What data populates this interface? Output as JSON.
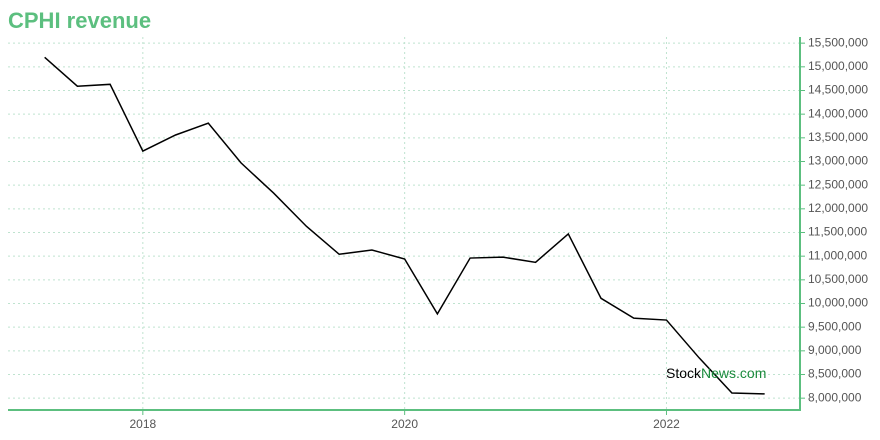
{
  "chart_data": {
    "type": "line",
    "title": "CPHI revenue",
    "x": [
      2017.25,
      2017.5,
      2017.75,
      2018,
      2018.25,
      2018.5,
      2018.75,
      2019,
      2019.25,
      2019.5,
      2019.75,
      2020,
      2020.25,
      2020.5,
      2020.75,
      2021,
      2021.25,
      2021.5,
      2021.75,
      2022,
      2022.25,
      2022.5,
      2022.75
    ],
    "series": [
      {
        "color": "#000000",
        "values": [
          15200000,
          14590000,
          14630000,
          13220000,
          13560000,
          13810000,
          12970000,
          12330000,
          11630000,
          11040000,
          11130000,
          10940000,
          9780000,
          10960000,
          10980000,
          10870000,
          11470000,
          10110000,
          9690000,
          9650000,
          8850000,
          8110000,
          8090000
        ]
      }
    ],
    "xlim": [
      2016.97,
      2023.02
    ],
    "xticks": [
      2018,
      2020,
      2022
    ],
    "ylim": [
      7750000,
      15630000
    ],
    "yticks": [
      {
        "value": 8000000,
        "label": "8,000,000"
      },
      {
        "value": 8500000,
        "label": "8,500,000"
      },
      {
        "value": 9000000,
        "label": "9,000,000"
      },
      {
        "value": 9500000,
        "label": "9,500,000"
      },
      {
        "value": 10000000,
        "label": "10,000,000"
      },
      {
        "value": 10500000,
        "label": "10,500,000"
      },
      {
        "value": 11000000,
        "label": "11,000,000"
      },
      {
        "value": 11500000,
        "label": "11,500,000"
      },
      {
        "value": 12000000,
        "label": "12,000,000"
      },
      {
        "value": 12500000,
        "label": "12,500,000"
      },
      {
        "value": 13000000,
        "label": "13,000,000"
      },
      {
        "value": 13500000,
        "label": "13,500,000"
      },
      {
        "value": 14000000,
        "label": "14,000,000"
      },
      {
        "value": 14500000,
        "label": "14,500,000"
      },
      {
        "value": 15000000,
        "label": "15,000,000"
      },
      {
        "value": 15500000,
        "label": "15,500,000"
      }
    ],
    "grid": true,
    "axis_color": "#5cbf7f",
    "watermark": {
      "part1": "Stock",
      "part2": "News.com"
    }
  }
}
